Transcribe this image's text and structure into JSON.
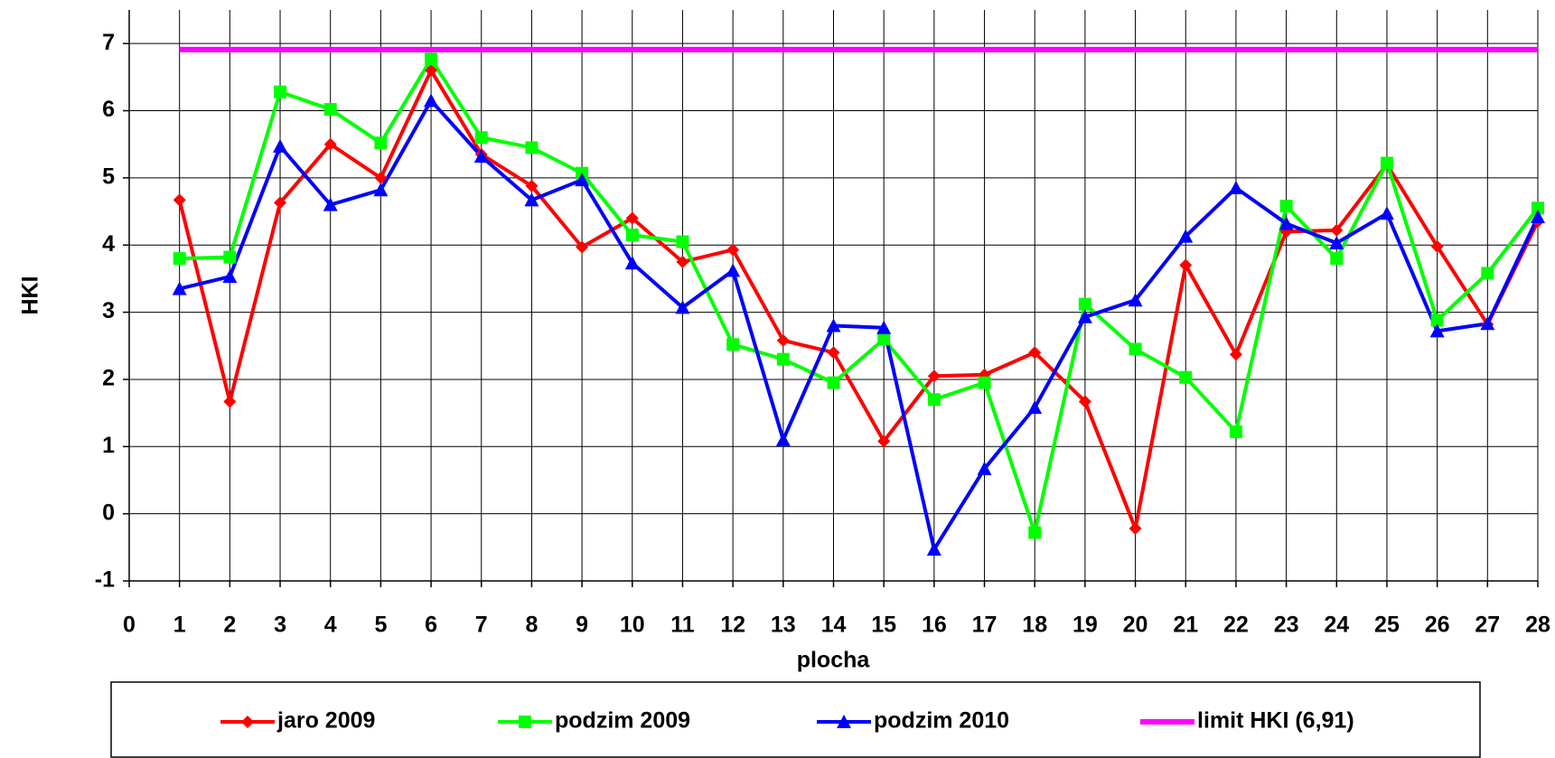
{
  "chart_data": {
    "type": "line",
    "x_label": "plocha",
    "y_label": "HKI",
    "x": [
      1,
      2,
      3,
      4,
      5,
      6,
      7,
      8,
      9,
      10,
      11,
      12,
      13,
      14,
      15,
      16,
      17,
      18,
      19,
      20,
      21,
      22,
      23,
      24,
      25,
      26,
      27,
      28
    ],
    "series": [
      {
        "name": "jaro 2009",
        "color": "#ff0000",
        "marker": "diamond",
        "values": [
          4.67,
          1.67,
          4.63,
          5.5,
          5.0,
          6.6,
          5.35,
          4.88,
          3.97,
          4.4,
          3.75,
          3.93,
          2.58,
          2.4,
          1.08,
          2.05,
          2.07,
          2.4,
          1.67,
          -0.22,
          3.7,
          2.37,
          4.2,
          4.22,
          5.2,
          3.98,
          2.82,
          4.35
        ]
      },
      {
        "name": "podzim 2009",
        "color": "#00ff00",
        "marker": "square",
        "values": [
          3.8,
          3.82,
          6.28,
          6.02,
          5.52,
          6.77,
          5.6,
          5.45,
          5.07,
          4.15,
          4.05,
          2.52,
          2.3,
          1.95,
          2.6,
          1.7,
          1.95,
          -0.28,
          3.12,
          2.45,
          2.03,
          1.22,
          4.58,
          3.8,
          5.22,
          2.88,
          3.58,
          4.55
        ]
      },
      {
        "name": "podzim 2010",
        "color": "#0000ff",
        "marker": "triangle",
        "values": [
          3.35,
          3.53,
          5.47,
          4.6,
          4.82,
          6.15,
          5.32,
          4.67,
          4.97,
          3.73,
          3.07,
          3.62,
          1.1,
          2.8,
          2.77,
          -0.53,
          0.67,
          1.58,
          2.93,
          3.18,
          4.13,
          4.85,
          4.32,
          4.03,
          4.47,
          2.72,
          2.83,
          4.42
        ]
      },
      {
        "name": "limit HKI (6,91)",
        "color": "#ff00ff",
        "marker": "none",
        "values": [
          6.91,
          6.91,
          6.91,
          6.91,
          6.91,
          6.91,
          6.91,
          6.91,
          6.91,
          6.91,
          6.91,
          6.91,
          6.91,
          6.91,
          6.91,
          6.91,
          6.91,
          6.91,
          6.91,
          6.91,
          6.91,
          6.91,
          6.91,
          6.91,
          6.91,
          6.91,
          6.91,
          6.91
        ]
      }
    ],
    "xlim": [
      0,
      28
    ],
    "xticks": [
      0,
      1,
      2,
      3,
      4,
      5,
      6,
      7,
      8,
      9,
      10,
      11,
      12,
      13,
      14,
      15,
      16,
      17,
      18,
      19,
      20,
      21,
      22,
      23,
      24,
      25,
      26,
      27,
      28
    ],
    "ylim": [
      -1,
      7.5
    ],
    "yticks": [
      -1,
      0,
      1,
      2,
      3,
      4,
      5,
      6,
      7
    ],
    "grid": true,
    "legend": "bottom"
  }
}
